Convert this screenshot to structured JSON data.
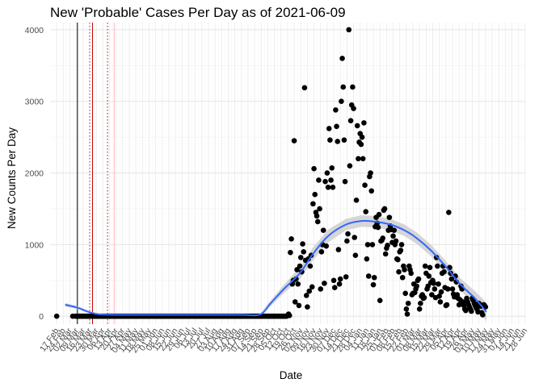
{
  "chart_data": {
    "type": "scatter",
    "title": "New 'Probable' Cases Per Day as of 2021-06-09",
    "xlabel": "Date",
    "ylabel": "New Counts Per Day",
    "x_type": "date",
    "xlim": [
      "2020-02-10",
      "2021-06-29"
    ],
    "ylim": [
      -110,
      4100
    ],
    "yticks": [
      0,
      1000,
      2000,
      3000,
      4000
    ],
    "xtick_start": "2020-02-17",
    "xtick_step_days": 7,
    "xtick_format": "D Mon",
    "grid": true,
    "point_color": "#000000",
    "smooth_color": "#3366ff",
    "band_color": "#c8c8c8",
    "vlines": [
      {
        "date": "2020-03-10",
        "color": "#000000",
        "style": "solid"
      },
      {
        "date": "2020-03-23",
        "color": "#b22222",
        "style": "dotted"
      },
      {
        "date": "2020-03-26",
        "color": "#cc0000",
        "style": "solid"
      },
      {
        "date": "2020-04-11",
        "color": "#cc0000",
        "style": "dotted"
      },
      {
        "date": "2020-04-18",
        "color": "#ffb6c1",
        "style": "solid"
      }
    ],
    "smooth": [
      {
        "date": "2020-02-26",
        "y": 160,
        "se": 25
      },
      {
        "date": "2020-03-10",
        "y": 120,
        "se": 20
      },
      {
        "date": "2020-03-22",
        "y": 60,
        "se": 15
      },
      {
        "date": "2020-04-03",
        "y": 25,
        "se": 10
      },
      {
        "date": "2020-05-01",
        "y": 20,
        "se": 8
      },
      {
        "date": "2020-06-01",
        "y": 20,
        "se": 8
      },
      {
        "date": "2020-07-01",
        "y": 20,
        "se": 8
      },
      {
        "date": "2020-08-01",
        "y": 20,
        "se": 8
      },
      {
        "date": "2020-09-01",
        "y": 20,
        "se": 8
      },
      {
        "date": "2020-09-20",
        "y": 25,
        "se": 15
      },
      {
        "date": "2020-10-01",
        "y": 180,
        "se": 40
      },
      {
        "date": "2020-10-15",
        "y": 380,
        "se": 60
      },
      {
        "date": "2020-11-01",
        "y": 600,
        "se": 80
      },
      {
        "date": "2020-11-15",
        "y": 870,
        "se": 90
      },
      {
        "date": "2020-12-01",
        "y": 1120,
        "se": 90
      },
      {
        "date": "2020-12-20",
        "y": 1280,
        "se": 80
      },
      {
        "date": "2021-01-05",
        "y": 1330,
        "se": 80
      },
      {
        "date": "2021-01-20",
        "y": 1320,
        "se": 80
      },
      {
        "date": "2021-02-05",
        "y": 1280,
        "se": 80
      },
      {
        "date": "2021-02-20",
        "y": 1200,
        "se": 80
      },
      {
        "date": "2021-03-05",
        "y": 1090,
        "se": 80
      },
      {
        "date": "2021-03-20",
        "y": 920,
        "se": 80
      },
      {
        "date": "2021-04-05",
        "y": 690,
        "se": 80
      },
      {
        "date": "2021-04-20",
        "y": 450,
        "se": 85
      },
      {
        "date": "2021-05-05",
        "y": 260,
        "se": 100
      },
      {
        "date": "2021-05-18",
        "y": 60,
        "se": 130
      }
    ],
    "zero_run": {
      "start": "2020-03-08",
      "end": "2020-10-18",
      "y": 0
    },
    "points": [
      {
        "date": "2020-02-17",
        "y": 0
      },
      {
        "date": "2020-03-05",
        "y": 0
      },
      {
        "date": "2020-10-20",
        "y": 30
      },
      {
        "date": "2020-10-21",
        "y": 10
      },
      {
        "date": "2020-10-22",
        "y": 890
      },
      {
        "date": "2020-10-23",
        "y": 1080
      },
      {
        "date": "2020-10-24",
        "y": 450
      },
      {
        "date": "2020-10-25",
        "y": 500
      },
      {
        "date": "2020-10-26",
        "y": 2450
      },
      {
        "date": "2020-10-27",
        "y": 200
      },
      {
        "date": "2020-10-28",
        "y": 520
      },
      {
        "date": "2020-10-29",
        "y": 650
      },
      {
        "date": "2020-10-30",
        "y": 450
      },
      {
        "date": "2020-10-31",
        "y": 150
      },
      {
        "date": "2020-11-01",
        "y": 700
      },
      {
        "date": "2020-11-02",
        "y": 820
      },
      {
        "date": "2020-11-03",
        "y": 620
      },
      {
        "date": "2020-11-04",
        "y": 1010
      },
      {
        "date": "2020-11-05",
        "y": 900
      },
      {
        "date": "2020-11-06",
        "y": 3190
      },
      {
        "date": "2020-11-07",
        "y": 780
      },
      {
        "date": "2020-11-08",
        "y": 290
      },
      {
        "date": "2020-11-09",
        "y": 130
      },
      {
        "date": "2020-11-10",
        "y": 800
      },
      {
        "date": "2020-11-11",
        "y": 350
      },
      {
        "date": "2020-11-12",
        "y": 700
      },
      {
        "date": "2020-11-13",
        "y": 850
      },
      {
        "date": "2020-11-14",
        "y": 410
      },
      {
        "date": "2020-11-15",
        "y": 1570
      },
      {
        "date": "2020-11-16",
        "y": 2060
      },
      {
        "date": "2020-11-17",
        "y": 1700
      },
      {
        "date": "2020-11-18",
        "y": 1450
      },
      {
        "date": "2020-11-19",
        "y": 1400
      },
      {
        "date": "2020-11-20",
        "y": 1320
      },
      {
        "date": "2020-11-21",
        "y": 1900
      },
      {
        "date": "2020-11-22",
        "y": 1500
      },
      {
        "date": "2020-11-23",
        "y": 380
      },
      {
        "date": "2020-11-24",
        "y": 900
      },
      {
        "date": "2020-11-25",
        "y": 1000
      },
      {
        "date": "2020-11-26",
        "y": 1200
      },
      {
        "date": "2020-11-27",
        "y": 460
      },
      {
        "date": "2020-11-28",
        "y": 1880
      },
      {
        "date": "2020-11-29",
        "y": 980
      },
      {
        "date": "2020-11-30",
        "y": 2000
      },
      {
        "date": "2020-12-01",
        "y": 1800
      },
      {
        "date": "2020-12-02",
        "y": 2620
      },
      {
        "date": "2020-12-03",
        "y": 2460
      },
      {
        "date": "2020-12-04",
        "y": 1900
      },
      {
        "date": "2020-12-05",
        "y": 2070
      },
      {
        "date": "2020-12-06",
        "y": 1800
      },
      {
        "date": "2020-12-07",
        "y": 500
      },
      {
        "date": "2020-12-08",
        "y": 400
      },
      {
        "date": "2020-12-09",
        "y": 2880
      },
      {
        "date": "2020-12-10",
        "y": 2650
      },
      {
        "date": "2020-12-11",
        "y": 2440
      },
      {
        "date": "2020-12-12",
        "y": 930
      },
      {
        "date": "2020-12-13",
        "y": 450
      },
      {
        "date": "2020-12-14",
        "y": 520
      },
      {
        "date": "2020-12-15",
        "y": 3000
      },
      {
        "date": "2020-12-16",
        "y": 3600
      },
      {
        "date": "2020-12-17",
        "y": 3200
      },
      {
        "date": "2020-12-18",
        "y": 2460
      },
      {
        "date": "2020-12-19",
        "y": 1880
      },
      {
        "date": "2020-12-20",
        "y": 550
      },
      {
        "date": "2020-12-21",
        "y": 1050
      },
      {
        "date": "2020-12-22",
        "y": 1150
      },
      {
        "date": "2020-12-23",
        "y": 4000
      },
      {
        "date": "2020-12-24",
        "y": 2100
      },
      {
        "date": "2020-12-25",
        "y": 2730
      },
      {
        "date": "2020-12-26",
        "y": 2950
      },
      {
        "date": "2020-12-27",
        "y": 3200
      },
      {
        "date": "2020-12-28",
        "y": 2900
      },
      {
        "date": "2020-12-29",
        "y": 1100
      },
      {
        "date": "2020-12-30",
        "y": 850
      },
      {
        "date": "2020-12-31",
        "y": 1620
      },
      {
        "date": "2021-01-01",
        "y": 2660
      },
      {
        "date": "2021-01-02",
        "y": 2200
      },
      {
        "date": "2021-01-03",
        "y": 2430
      },
      {
        "date": "2021-01-04",
        "y": 2550
      },
      {
        "date": "2021-01-05",
        "y": 2400
      },
      {
        "date": "2021-01-06",
        "y": 2500
      },
      {
        "date": "2021-01-07",
        "y": 2200
      },
      {
        "date": "2021-01-08",
        "y": 2700
      },
      {
        "date": "2021-01-09",
        "y": 1830
      },
      {
        "date": "2021-01-10",
        "y": 1460
      },
      {
        "date": "2021-01-11",
        "y": 800
      },
      {
        "date": "2021-01-12",
        "y": 1000
      },
      {
        "date": "2021-01-13",
        "y": 560
      },
      {
        "date": "2021-01-14",
        "y": 1950
      },
      {
        "date": "2021-01-15",
        "y": 2000
      },
      {
        "date": "2021-01-16",
        "y": 1750
      },
      {
        "date": "2021-01-17",
        "y": 1000
      },
      {
        "date": "2021-01-18",
        "y": 440
      },
      {
        "date": "2021-01-19",
        "y": 540
      },
      {
        "date": "2021-01-20",
        "y": 1250
      },
      {
        "date": "2021-01-21",
        "y": 1380
      },
      {
        "date": "2021-01-22",
        "y": 1300
      },
      {
        "date": "2021-01-23",
        "y": 1240
      },
      {
        "date": "2021-01-24",
        "y": 1420
      },
      {
        "date": "2021-01-25",
        "y": 220
      },
      {
        "date": "2021-01-26",
        "y": 1050
      },
      {
        "date": "2021-01-27",
        "y": 1060
      },
      {
        "date": "2021-01-28",
        "y": 1090
      },
      {
        "date": "2021-01-29",
        "y": 1480
      },
      {
        "date": "2021-01-30",
        "y": 1500
      },
      {
        "date": "2021-01-31",
        "y": 870
      },
      {
        "date": "2021-02-01",
        "y": 950
      },
      {
        "date": "2021-02-02",
        "y": 990
      },
      {
        "date": "2021-02-03",
        "y": 1200
      },
      {
        "date": "2021-02-04",
        "y": 1380
      },
      {
        "date": "2021-02-05",
        "y": 1260
      },
      {
        "date": "2021-02-06",
        "y": 1210
      },
      {
        "date": "2021-02-07",
        "y": 1030
      },
      {
        "date": "2021-02-08",
        "y": 1120
      },
      {
        "date": "2021-02-09",
        "y": 1200
      },
      {
        "date": "2021-02-10",
        "y": 1000
      },
      {
        "date": "2021-02-11",
        "y": 1050
      },
      {
        "date": "2021-02-12",
        "y": 800
      },
      {
        "date": "2021-02-13",
        "y": 790
      },
      {
        "date": "2021-02-14",
        "y": 620
      },
      {
        "date": "2021-02-15",
        "y": 900
      },
      {
        "date": "2021-02-16",
        "y": 920
      },
      {
        "date": "2021-02-17",
        "y": 1000
      },
      {
        "date": "2021-02-18",
        "y": 540
      },
      {
        "date": "2021-02-19",
        "y": 700
      },
      {
        "date": "2021-02-20",
        "y": 650
      },
      {
        "date": "2021-02-21",
        "y": 320
      },
      {
        "date": "2021-02-22",
        "y": 100
      },
      {
        "date": "2021-02-23",
        "y": 30
      },
      {
        "date": "2021-02-24",
        "y": 180
      },
      {
        "date": "2021-02-25",
        "y": 700
      },
      {
        "date": "2021-02-26",
        "y": 650
      },
      {
        "date": "2021-02-27",
        "y": 600
      },
      {
        "date": "2021-02-28",
        "y": 300
      },
      {
        "date": "2021-03-01",
        "y": 320
      },
      {
        "date": "2021-03-02",
        "y": 450
      },
      {
        "date": "2021-03-03",
        "y": 330
      },
      {
        "date": "2021-03-04",
        "y": 380
      },
      {
        "date": "2021-03-05",
        "y": 420
      },
      {
        "date": "2021-03-06",
        "y": 500
      },
      {
        "date": "2021-03-07",
        "y": 520
      },
      {
        "date": "2021-03-08",
        "y": 100
      },
      {
        "date": "2021-03-09",
        "y": 180
      },
      {
        "date": "2021-03-10",
        "y": 280
      },
      {
        "date": "2021-03-11",
        "y": 300
      },
      {
        "date": "2021-03-12",
        "y": 250
      },
      {
        "date": "2021-03-13",
        "y": 260
      },
      {
        "date": "2021-03-14",
        "y": 700
      },
      {
        "date": "2021-03-15",
        "y": 600
      },
      {
        "date": "2021-03-16",
        "y": 380
      },
      {
        "date": "2021-03-17",
        "y": 420
      },
      {
        "date": "2021-03-18",
        "y": 560
      },
      {
        "date": "2021-03-19",
        "y": 680
      },
      {
        "date": "2021-03-20",
        "y": 470
      },
      {
        "date": "2021-03-21",
        "y": 300
      },
      {
        "date": "2021-03-22",
        "y": 500
      },
      {
        "date": "2021-03-23",
        "y": 460
      },
      {
        "date": "2021-03-24",
        "y": 380
      },
      {
        "date": "2021-03-25",
        "y": 260
      },
      {
        "date": "2021-03-26",
        "y": 820
      },
      {
        "date": "2021-03-27",
        "y": 700
      },
      {
        "date": "2021-03-28",
        "y": 450
      },
      {
        "date": "2021-03-29",
        "y": 280
      },
      {
        "date": "2021-03-30",
        "y": 200
      },
      {
        "date": "2021-03-31",
        "y": 340
      },
      {
        "date": "2021-04-01",
        "y": 600
      },
      {
        "date": "2021-04-02",
        "y": 700
      },
      {
        "date": "2021-04-03",
        "y": 620
      },
      {
        "date": "2021-04-04",
        "y": 400
      },
      {
        "date": "2021-04-05",
        "y": 150
      },
      {
        "date": "2021-04-06",
        "y": 160
      },
      {
        "date": "2021-04-07",
        "y": 380
      },
      {
        "date": "2021-04-08",
        "y": 1450
      },
      {
        "date": "2021-04-09",
        "y": 680
      },
      {
        "date": "2021-04-10",
        "y": 600
      },
      {
        "date": "2021-04-11",
        "y": 520
      },
      {
        "date": "2021-04-12",
        "y": 380
      },
      {
        "date": "2021-04-13",
        "y": 310
      },
      {
        "date": "2021-04-14",
        "y": 270
      },
      {
        "date": "2021-04-15",
        "y": 560
      },
      {
        "date": "2021-04-16",
        "y": 480
      },
      {
        "date": "2021-04-17",
        "y": 300
      },
      {
        "date": "2021-04-18",
        "y": 250
      },
      {
        "date": "2021-04-19",
        "y": 160
      },
      {
        "date": "2021-04-20",
        "y": 230
      },
      {
        "date": "2021-04-21",
        "y": 420
      },
      {
        "date": "2021-04-22",
        "y": 380
      },
      {
        "date": "2021-04-23",
        "y": 200
      },
      {
        "date": "2021-04-24",
        "y": 150
      },
      {
        "date": "2021-04-25",
        "y": 100
      },
      {
        "date": "2021-04-26",
        "y": 80
      },
      {
        "date": "2021-04-27",
        "y": 250
      },
      {
        "date": "2021-04-28",
        "y": 200
      },
      {
        "date": "2021-04-29",
        "y": 160
      },
      {
        "date": "2021-04-30",
        "y": 130
      },
      {
        "date": "2021-05-01",
        "y": 100
      },
      {
        "date": "2021-05-02",
        "y": 70
      },
      {
        "date": "2021-05-03",
        "y": 250
      },
      {
        "date": "2021-05-04",
        "y": 220
      },
      {
        "date": "2021-05-05",
        "y": 180
      },
      {
        "date": "2021-05-06",
        "y": 150
      },
      {
        "date": "2021-05-07",
        "y": 120
      },
      {
        "date": "2021-05-08",
        "y": 100
      },
      {
        "date": "2021-05-09",
        "y": 60
      },
      {
        "date": "2021-05-10",
        "y": 180
      },
      {
        "date": "2021-05-11",
        "y": 160
      },
      {
        "date": "2021-05-12",
        "y": 140
      },
      {
        "date": "2021-05-13",
        "y": 50
      },
      {
        "date": "2021-05-14",
        "y": 20
      },
      {
        "date": "2021-05-15",
        "y": 160
      },
      {
        "date": "2021-05-16",
        "y": 150
      },
      {
        "date": "2021-05-17",
        "y": 130
      }
    ]
  }
}
